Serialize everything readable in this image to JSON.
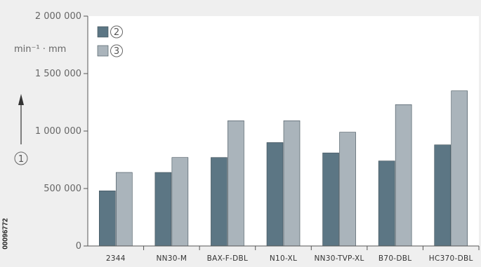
{
  "doc_code": "00096772",
  "colors": {
    "series_2": "#5c7684",
    "series_3": "#aab4bb",
    "axis": "#555555",
    "plot_bg": "#ffffff",
    "page_bg": "#efefef"
  },
  "chart_data": {
    "type": "bar",
    "unit": "min⁻¹ · mm",
    "axis_marker": "1",
    "categories": [
      "2344",
      "NN30-M",
      "BAX-F-DBL",
      "N10-XL",
      "NN30-TVP-XL",
      "B70-DBL",
      "HC370-DBL"
    ],
    "series": [
      {
        "name": "2",
        "values": [
          480000,
          640000,
          770000,
          900000,
          810000,
          740000,
          880000
        ]
      },
      {
        "name": "3",
        "values": [
          640000,
          770000,
          1090000,
          1090000,
          990000,
          1230000,
          1350000
        ]
      }
    ],
    "ylim": [
      0,
      2000000
    ],
    "yticks": [
      "0",
      "500 000",
      "1 000 000",
      "1 500 000",
      "2 000 000"
    ],
    "grid": false,
    "legend_position": "top-left"
  }
}
